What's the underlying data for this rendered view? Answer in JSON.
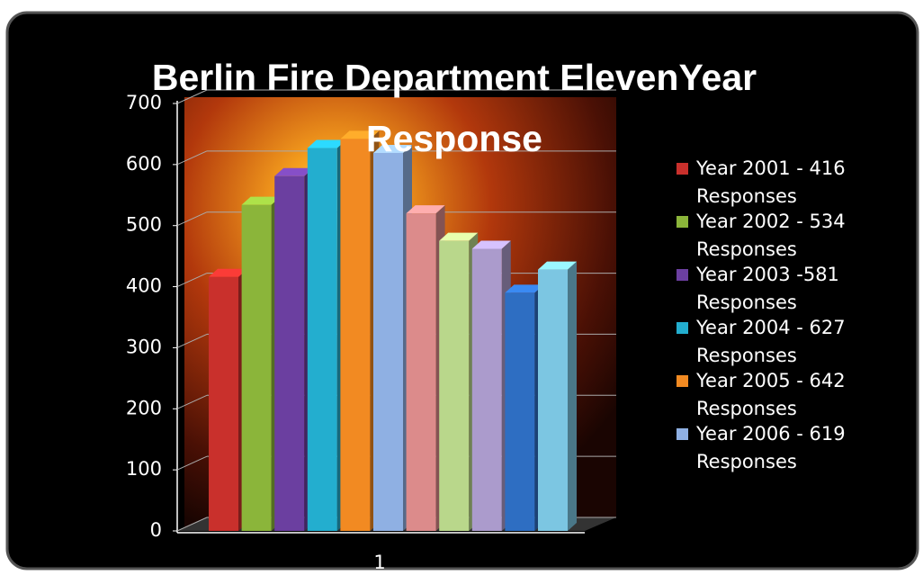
{
  "chart_data": {
    "type": "bar",
    "title": "Berlin Fire Department ElevenYear Response",
    "categories": [
      "1"
    ],
    "series": [
      {
        "name": "Year 2001 - 416 Responses",
        "color": "#c9302c",
        "values": [
          416
        ]
      },
      {
        "name": "Year 2002 - 534 Responses",
        "color": "#8bb53a",
        "values": [
          534
        ]
      },
      {
        "name": "Year 2003 -581 Responses",
        "color": "#6b3fa0",
        "values": [
          581
        ]
      },
      {
        "name": "Year 2004 - 627 Responses",
        "color": "#23aecf",
        "values": [
          627
        ]
      },
      {
        "name": "Year 2005 - 642 Responses",
        "color": "#f28a22",
        "values": [
          642
        ]
      },
      {
        "name": "Year 2006 - 619 Responses",
        "color": "#8fb0e3",
        "values": [
          619
        ]
      },
      {
        "color": "#dc8b8b",
        "values": [
          520
        ]
      },
      {
        "color": "#b9d78b",
        "values": [
          475
        ]
      },
      {
        "color": "#ab9bcc",
        "values": [
          462
        ]
      },
      {
        "color": "#2e6ec2",
        "values": [
          390
        ]
      },
      {
        "color": "#7cc6e2",
        "values": [
          428
        ]
      }
    ],
    "ylim": [
      0,
      700
    ],
    "yticks": [
      0,
      100,
      200,
      300,
      400,
      500,
      600,
      700
    ],
    "grid": true,
    "legend": "right"
  }
}
